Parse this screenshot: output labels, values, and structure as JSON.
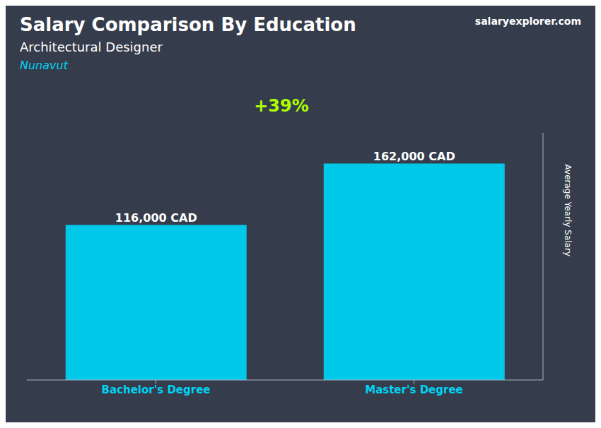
{
  "chart_data": {
    "type": "bar",
    "title": "Salary Comparison By Education",
    "subtitle": "Architectural Designer",
    "annotations": [
      "Nunavut",
      "salaryexplorer.com",
      "+39%"
    ],
    "y_label": "Average Yearly Salary",
    "categories": [
      "Bachelor's Degree",
      "Master's Degree"
    ],
    "values": [
      116000,
      162000
    ],
    "value_labels": [
      "116,000 CAD",
      "162,000 CAD"
    ],
    "color": "#00c8e8",
    "ylim": [
      0,
      185000
    ],
    "grid": false,
    "legend": false,
    "data_labels": true,
    "tick_labels": "x"
  }
}
